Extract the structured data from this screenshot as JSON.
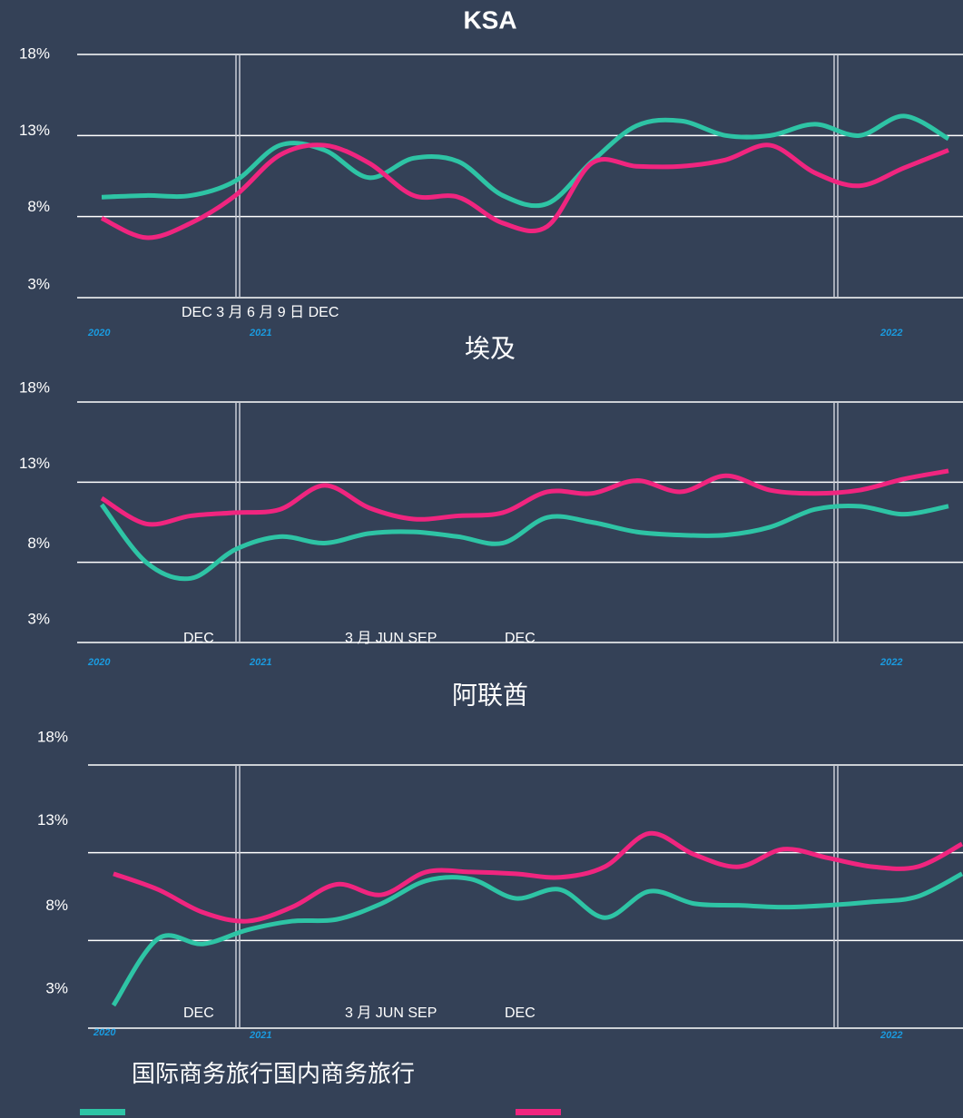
{
  "chart_data": [
    {
      "type": "line",
      "title": "KSA",
      "ylim": [
        3,
        18
      ],
      "yticks": [
        {
          "value": 18,
          "label": "18%"
        },
        {
          "value": 13,
          "label": "13%"
        },
        {
          "value": 8,
          "label": "8%"
        },
        {
          "value": 3,
          "label": "3%"
        }
      ],
      "month_labels": [
        "DEC 3 月 6 月 9 日 DEC"
      ],
      "year_labels": [
        "2020",
        "2021",
        "2022"
      ],
      "series": [
        {
          "name": "国际商务旅行",
          "color": "#2ec4a5",
          "values": [
            9.2,
            9.3,
            9.3,
            10.2,
            12.4,
            12.1,
            10.4,
            11.6,
            11.4,
            9.3,
            8.8,
            11.4,
            13.6,
            13.9,
            13.0,
            13.0,
            13.7,
            13.0,
            14.2,
            12.8
          ]
        },
        {
          "name": "国内商务旅行",
          "color": "#f0257f",
          "values": [
            7.9,
            6.7,
            7.6,
            9.3,
            11.8,
            12.4,
            11.3,
            9.3,
            9.2,
            7.6,
            7.4,
            11.3,
            11.1,
            11.1,
            11.5,
            12.4,
            10.7,
            9.9,
            11.0,
            12.1
          ]
        }
      ]
    },
    {
      "type": "line",
      "title": "埃及",
      "ylim": [
        3,
        18
      ],
      "yticks": [
        {
          "value": 18,
          "label": "18%"
        },
        {
          "value": 13,
          "label": "13%"
        },
        {
          "value": 8,
          "label": "8%"
        },
        {
          "value": 3,
          "label": "3%"
        }
      ],
      "month_labels": [
        "DEC",
        "3 月 JUN SEP",
        "DEC"
      ],
      "year_labels": [
        "2020",
        "2021",
        "2022"
      ],
      "series": [
        {
          "color": "#2ec4a5",
          "values": [
            11.6,
            8.0,
            7.0,
            8.8,
            9.6,
            9.2,
            9.8,
            9.9,
            9.6,
            9.2,
            10.8,
            10.5,
            9.9,
            9.7,
            9.7,
            10.2,
            11.3,
            11.5,
            11.0,
            11.5
          ]
        },
        {
          "color": "#f0257f",
          "values": [
            12.0,
            10.4,
            10.9,
            11.1,
            11.3,
            12.8,
            11.4,
            10.7,
            10.9,
            11.1,
            12.4,
            12.3,
            13.1,
            12.4,
            13.4,
            12.5,
            12.3,
            12.5,
            13.2,
            13.7
          ]
        }
      ]
    },
    {
      "type": "line",
      "title": "阿联酋",
      "ylim": [
        3,
        18
      ],
      "yticks": [
        {
          "value": 18,
          "label": "18%"
        },
        {
          "value": 13,
          "label": "13%"
        },
        {
          "value": 8,
          "label": "8%"
        },
        {
          "value": 3,
          "label": "3%"
        }
      ],
      "month_labels": [
        "DEC",
        "3 月 JUN SEP",
        "DEC"
      ],
      "year_labels": [
        "2020",
        "2021",
        "2022"
      ],
      "series": [
        {
          "color": "#2ec4a5",
          "values": [
            4.3,
            8.1,
            7.8,
            8.6,
            9.1,
            9.2,
            10.1,
            11.4,
            11.5,
            10.4,
            10.9,
            9.3,
            10.8,
            10.1,
            10.0,
            9.9,
            10.0,
            10.2,
            10.5,
            11.8
          ]
        },
        {
          "color": "#f0257f",
          "values": [
            11.8,
            10.9,
            9.6,
            9.1,
            9.9,
            11.2,
            10.6,
            11.9,
            11.9,
            11.8,
            11.6,
            12.2,
            14.1,
            12.9,
            12.2,
            13.2,
            12.7,
            12.2,
            12.2,
            13.5
          ]
        }
      ]
    }
  ]
}
